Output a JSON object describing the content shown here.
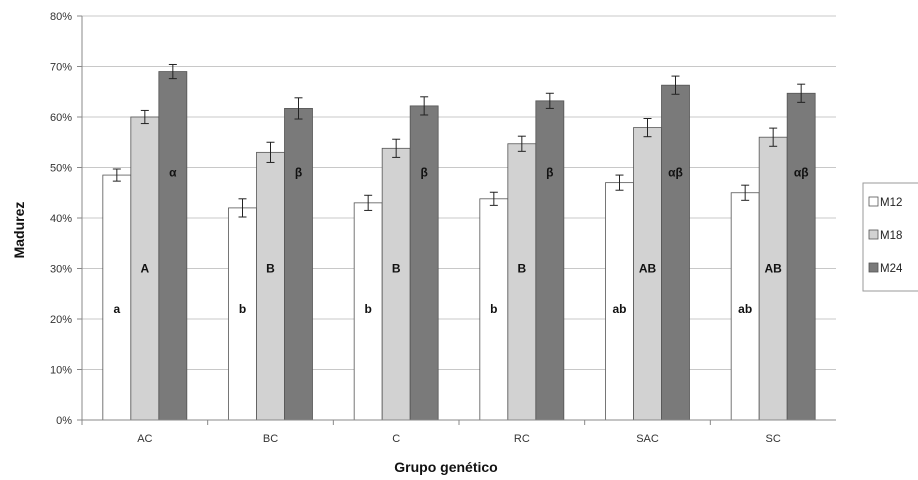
{
  "chart_data": {
    "type": "bar",
    "title": "",
    "xlabel": "Grupo genético",
    "ylabel": "Madurez",
    "categories": [
      "AC",
      "BC",
      "C",
      "RC",
      "SAC",
      "SC"
    ],
    "series": [
      {
        "name": "M12",
        "values": [
          48.5,
          42.0,
          43.0,
          43.8,
          47.0,
          45.0
        ],
        "errors": [
          1.2,
          1.8,
          1.5,
          1.3,
          1.5,
          1.5
        ],
        "color": "#ffffff",
        "labels": [
          "a",
          "b",
          "b",
          "b",
          "ab",
          "ab"
        ],
        "label_y": 22
      },
      {
        "name": "M18",
        "values": [
          60.0,
          53.0,
          53.8,
          54.7,
          57.9,
          56.0
        ],
        "errors": [
          1.3,
          2.0,
          1.8,
          1.5,
          1.8,
          1.8
        ],
        "color": "#d2d2d2",
        "labels": [
          "A",
          "B",
          "B",
          "B",
          "AB",
          "AB"
        ],
        "label_y": 30
      },
      {
        "name": "M24",
        "values": [
          69.0,
          61.7,
          62.2,
          63.2,
          66.3,
          64.7
        ],
        "errors": [
          1.4,
          2.1,
          1.8,
          1.5,
          1.8,
          1.8
        ],
        "color": "#7a7a7a",
        "labels": [
          "α",
          "β",
          "β",
          "β",
          "αβ",
          "αβ"
        ],
        "label_y": 49
      }
    ],
    "yticks": [
      "0%",
      "10%",
      "20%",
      "30%",
      "40%",
      "50%",
      "60%",
      "70%",
      "80%"
    ],
    "ylim": [
      0,
      80
    ],
    "grid": true,
    "legend": "right"
  }
}
